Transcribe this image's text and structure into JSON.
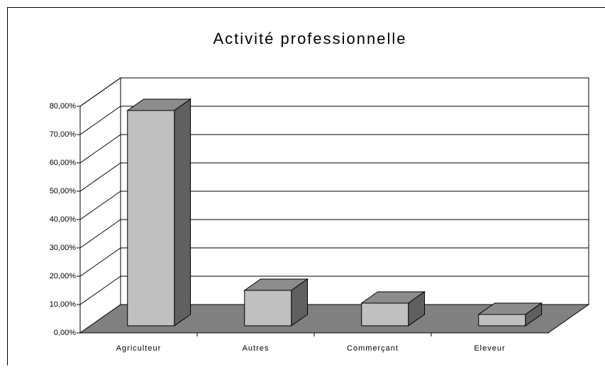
{
  "chart_data": {
    "type": "bar3d",
    "title": "Activité professionnelle",
    "categories": [
      "Agriculteur",
      "Autres",
      "Commerçant",
      "Eleveur"
    ],
    "values": [
      76,
      12.5,
      8,
      4
    ],
    "color": "#c0c0c0",
    "ylim": [
      0,
      80
    ],
    "yticks": [
      {
        "value": 0,
        "label": "0,00%"
      },
      {
        "value": 10,
        "label": "10,00%"
      },
      {
        "value": 20,
        "label": "20,00%"
      },
      {
        "value": 30,
        "label": "30,00%"
      },
      {
        "value": 40,
        "label": "40,00%"
      },
      {
        "value": 50,
        "label": "50,00%"
      },
      {
        "value": 60,
        "label": "60,00%"
      },
      {
        "value": 70,
        "label": "70,00%"
      },
      {
        "value": 80,
        "label": "80,00%"
      }
    ],
    "grid": true
  }
}
